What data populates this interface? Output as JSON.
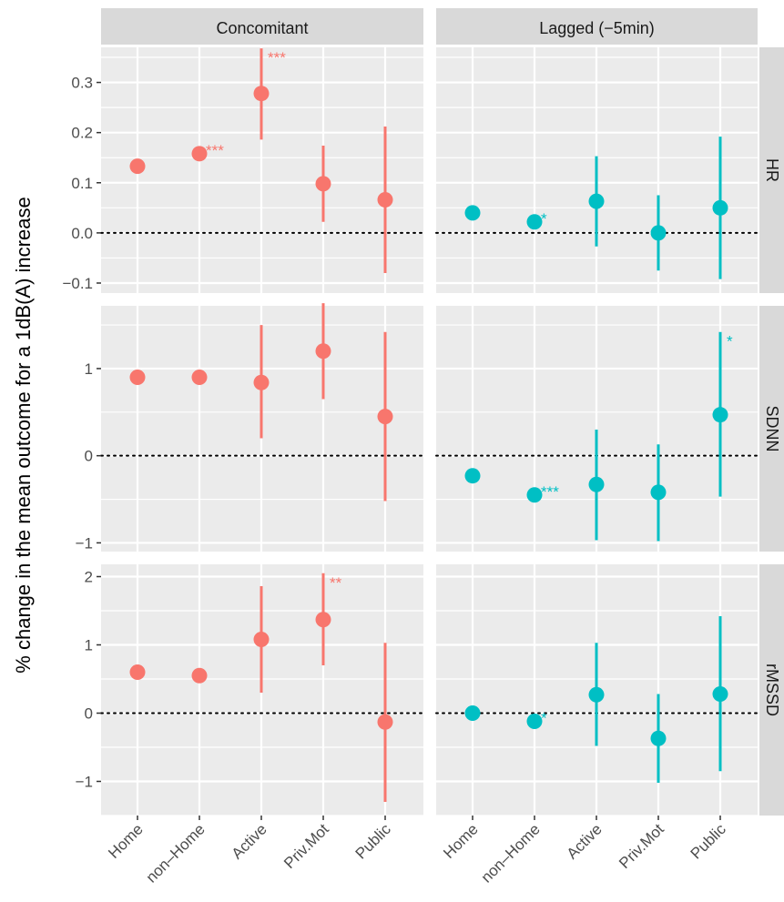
{
  "chart_data": {
    "type": "scatter",
    "subtype": "point-range faceted",
    "ylabel": "% change in the mean outcome for a 1dB(A) increase",
    "xlabel": "",
    "categories": [
      "Home",
      "non–Home",
      "Active",
      "Priv.Mot",
      "Public"
    ],
    "columns": [
      {
        "key": "conc",
        "label": "Concomitant",
        "color": "#F8766D"
      },
      {
        "key": "lag",
        "label": "Lagged (−5min)",
        "color": "#00BFC4"
      }
    ],
    "reference_line": 0,
    "grid": true,
    "rows": [
      {
        "label": "HR",
        "ylim": [
          -0.12,
          0.37
        ],
        "yticks": [
          -0.1,
          0.0,
          0.1,
          0.2,
          0.3
        ],
        "ytick_labels": [
          "−0.1",
          "0.0",
          "0.1",
          "0.2",
          "0.3"
        ],
        "series": {
          "conc": [
            {
              "x": "Home",
              "y": 0.133,
              "lo": null,
              "hi": null,
              "sig": ""
            },
            {
              "x": "non–Home",
              "y": 0.158,
              "lo": null,
              "hi": null,
              "sig": "***"
            },
            {
              "x": "Active",
              "y": 0.278,
              "lo": 0.186,
              "hi": 0.368,
              "sig": "***"
            },
            {
              "x": "Priv.Mot",
              "y": 0.098,
              "lo": 0.022,
              "hi": 0.174,
              "sig": ""
            },
            {
              "x": "Public",
              "y": 0.066,
              "lo": -0.08,
              "hi": 0.212,
              "sig": ""
            }
          ],
          "lag": [
            {
              "x": "Home",
              "y": 0.04,
              "lo": null,
              "hi": null,
              "sig": ""
            },
            {
              "x": "non–Home",
              "y": 0.022,
              "lo": null,
              "hi": null,
              "sig": "*"
            },
            {
              "x": "Active",
              "y": 0.063,
              "lo": -0.027,
              "hi": 0.153,
              "sig": ""
            },
            {
              "x": "Priv.Mot",
              "y": 0.0,
              "lo": -0.075,
              "hi": 0.075,
              "sig": ""
            },
            {
              "x": "Public",
              "y": 0.05,
              "lo": -0.092,
              "hi": 0.192,
              "sig": ""
            }
          ]
        }
      },
      {
        "label": "SDNN",
        "ylim": [
          -1.1,
          1.72
        ],
        "yticks": [
          -1,
          0,
          1
        ],
        "ytick_labels": [
          "−1",
          "0",
          "1"
        ],
        "series": {
          "conc": [
            {
              "x": "Home",
              "y": 0.9,
              "lo": null,
              "hi": null,
              "sig": ""
            },
            {
              "x": "non–Home",
              "y": 0.9,
              "lo": null,
              "hi": null,
              "sig": ""
            },
            {
              "x": "Active",
              "y": 0.84,
              "lo": 0.2,
              "hi": 1.5,
              "sig": ""
            },
            {
              "x": "Priv.Mot",
              "y": 1.2,
              "lo": 0.65,
              "hi": 1.75,
              "sig": ""
            },
            {
              "x": "Public",
              "y": 0.45,
              "lo": -0.52,
              "hi": 1.42,
              "sig": ""
            }
          ],
          "lag": [
            {
              "x": "Home",
              "y": -0.23,
              "lo": null,
              "hi": null,
              "sig": ""
            },
            {
              "x": "non–Home",
              "y": -0.45,
              "lo": null,
              "hi": null,
              "sig": "***"
            },
            {
              "x": "Active",
              "y": -0.33,
              "lo": -0.97,
              "hi": 0.3,
              "sig": ""
            },
            {
              "x": "Priv.Mot",
              "y": -0.42,
              "lo": -0.98,
              "hi": 0.13,
              "sig": ""
            },
            {
              "x": "Public",
              "y": 0.47,
              "lo": -0.47,
              "hi": 1.42,
              "sig": "*"
            }
          ]
        }
      },
      {
        "label": "rMSSD",
        "ylim": [
          -1.5,
          2.18
        ],
        "yticks": [
          -1,
          0,
          1,
          2
        ],
        "ytick_labels": [
          "−1",
          "0",
          "1",
          "2"
        ],
        "series": {
          "conc": [
            {
              "x": "Home",
              "y": 0.6,
              "lo": null,
              "hi": null,
              "sig": ""
            },
            {
              "x": "non–Home",
              "y": 0.55,
              "lo": null,
              "hi": null,
              "sig": ""
            },
            {
              "x": "Active",
              "y": 1.08,
              "lo": 0.3,
              "hi": 1.86,
              "sig": ""
            },
            {
              "x": "Priv.Mot",
              "y": 1.37,
              "lo": 0.7,
              "hi": 2.05,
              "sig": "**"
            },
            {
              "x": "Public",
              "y": -0.13,
              "lo": -1.3,
              "hi": 1.03,
              "sig": ""
            }
          ],
          "lag": [
            {
              "x": "Home",
              "y": 0.0,
              "lo": null,
              "hi": null,
              "sig": ""
            },
            {
              "x": "non–Home",
              "y": -0.12,
              "lo": null,
              "hi": null,
              "sig": "*"
            },
            {
              "x": "Active",
              "y": 0.27,
              "lo": -0.48,
              "hi": 1.03,
              "sig": ""
            },
            {
              "x": "Priv.Mot",
              "y": -0.37,
              "lo": -1.02,
              "hi": 0.28,
              "sig": ""
            },
            {
              "x": "Public",
              "y": 0.28,
              "lo": -0.85,
              "hi": 1.42,
              "sig": ""
            }
          ]
        }
      }
    ]
  }
}
